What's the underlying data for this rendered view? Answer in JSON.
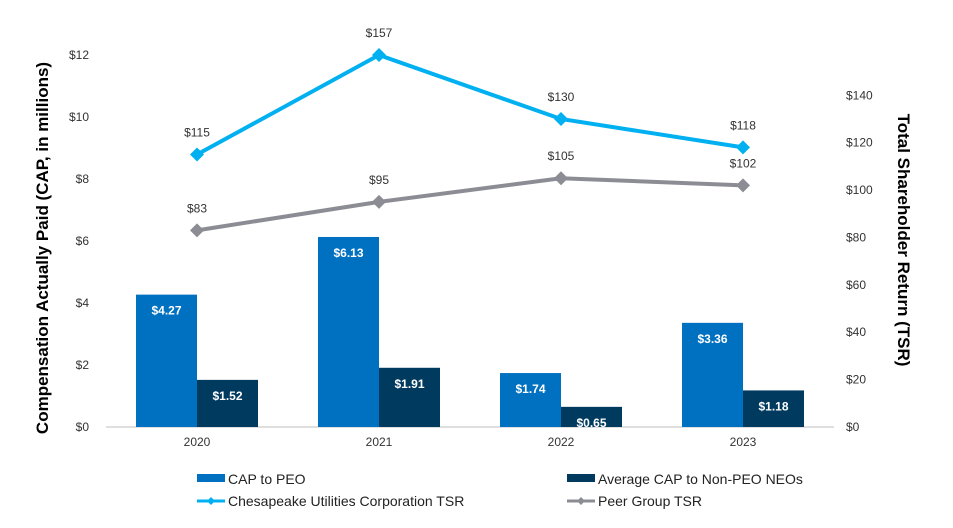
{
  "chart_data": {
    "type": "bar",
    "categories": [
      "2020",
      "2021",
      "2022",
      "2023"
    ],
    "ylabel": "Compensation Actually Paid (CAP, in millions)",
    "y2label": "Total Shareholder Return (TSR)",
    "ylim": [
      0,
      12
    ],
    "yticks": [
      0,
      2,
      4,
      6,
      8,
      10,
      12
    ],
    "ytick_labels": [
      "$0",
      "$2",
      "$4",
      "$6",
      "$8",
      "$10",
      "$12"
    ],
    "y2lim": [
      0,
      157
    ],
    "y2ticks": [
      0,
      20,
      40,
      60,
      80,
      100,
      120,
      140
    ],
    "y2tick_labels": [
      "$0",
      "$20",
      "$40",
      "$60",
      "$80",
      "$100",
      "$120",
      "$140"
    ],
    "grid": false,
    "legend_placement": "bottom",
    "series": [
      {
        "name": "CAP to PEO",
        "kind": "bar",
        "axis": "left",
        "color": "#0070C0",
        "values": [
          4.27,
          6.13,
          1.74,
          3.36
        ],
        "labels": [
          "$4.27",
          "$6.13",
          "$1.74",
          "$3.36"
        ]
      },
      {
        "name": "Average CAP to Non-PEO NEOs",
        "kind": "bar",
        "axis": "left",
        "color": "#003A5F",
        "values": [
          1.52,
          1.91,
          0.65,
          1.18
        ],
        "labels": [
          "$1.52",
          "$1.91",
          "$0.65",
          "$1.18"
        ]
      },
      {
        "name": "Chesapeake Utilities Corporation TSR",
        "kind": "line",
        "axis": "right",
        "color": "#00B0F0",
        "values": [
          115,
          157,
          130,
          118
        ],
        "labels": [
          "$115",
          "$157",
          "$130",
          "$118"
        ]
      },
      {
        "name": "Peer Group TSR",
        "kind": "line",
        "axis": "right",
        "color": "#8C8C94",
        "values": [
          83,
          95,
          105,
          102
        ],
        "labels": [
          "$83",
          "$95",
          "$105",
          "$102"
        ]
      }
    ]
  }
}
